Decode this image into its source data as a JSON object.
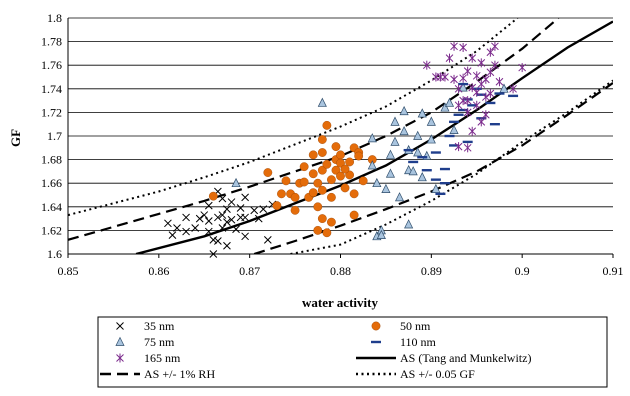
{
  "chart_data": {
    "type": "scatter",
    "title": "",
    "xlabel": "water activity",
    "ylabel": "GF",
    "xlim": [
      0.85,
      0.91
    ],
    "ylim": [
      1.6,
      1.8
    ],
    "x_ticks": [
      "0.85",
      "0.86",
      "0.87",
      "0.88",
      "0.89",
      "0.9",
      "0.91"
    ],
    "y_ticks": [
      "1.6",
      "1.62",
      "1.64",
      "1.66",
      "1.68",
      "1.7",
      "1.72",
      "1.74",
      "1.76",
      "1.78",
      "1.8"
    ],
    "grid": "horizontal",
    "legend_position": "bottom",
    "series": [
      {
        "name": "35 nm",
        "marker": "x",
        "color": "#000000",
        "points": [
          [
            0.861,
            1.626
          ],
          [
            0.8615,
            1.616
          ],
          [
            0.863,
            1.619
          ],
          [
            0.863,
            1.631
          ],
          [
            0.864,
            1.622
          ],
          [
            0.865,
            1.633
          ],
          [
            0.8655,
            1.628
          ],
          [
            0.8655,
            1.641
          ],
          [
            0.8655,
            1.619
          ],
          [
            0.866,
            1.612
          ],
          [
            0.866,
            1.6
          ],
          [
            0.8665,
            1.631
          ],
          [
            0.8665,
            1.611
          ],
          [
            0.867,
            1.647
          ],
          [
            0.867,
            1.633
          ],
          [
            0.867,
            1.622
          ],
          [
            0.8675,
            1.638
          ],
          [
            0.8675,
            1.627
          ],
          [
            0.8675,
            1.607
          ],
          [
            0.868,
            1.644
          ],
          [
            0.868,
            1.629
          ],
          [
            0.8685,
            1.621
          ],
          [
            0.869,
            1.639
          ],
          [
            0.869,
            1.631
          ],
          [
            0.8695,
            1.648
          ],
          [
            0.8695,
            1.631
          ],
          [
            0.8705,
            1.637
          ],
          [
            0.871,
            1.63
          ],
          [
            0.8715,
            1.638
          ],
          [
            0.8725,
            1.642
          ],
          [
            0.8695,
            1.615
          ],
          [
            0.872,
            1.612
          ],
          [
            0.8665,
            1.653
          ],
          [
            0.8645,
            1.63
          ],
          [
            0.862,
            1.622
          ]
        ]
      },
      {
        "name": "50 nm",
        "marker": "circle",
        "color": "#E46C0A",
        "points": [
          [
            0.866,
            1.649
          ],
          [
            0.872,
            1.669
          ],
          [
            0.873,
            1.641
          ],
          [
            0.8735,
            1.651
          ],
          [
            0.874,
            1.662
          ],
          [
            0.8745,
            1.651
          ],
          [
            0.875,
            1.637
          ],
          [
            0.875,
            1.648
          ],
          [
            0.8755,
            1.66
          ],
          [
            0.876,
            1.674
          ],
          [
            0.876,
            1.661
          ],
          [
            0.8765,
            1.648
          ],
          [
            0.877,
            1.684
          ],
          [
            0.877,
            1.668
          ],
          [
            0.877,
            1.652
          ],
          [
            0.8775,
            1.64
          ],
          [
            0.8775,
            1.66
          ],
          [
            0.878,
            1.697
          ],
          [
            0.878,
            1.686
          ],
          [
            0.878,
            1.671
          ],
          [
            0.878,
            1.654
          ],
          [
            0.878,
            1.63
          ],
          [
            0.8785,
            1.709
          ],
          [
            0.8785,
            1.676
          ],
          [
            0.879,
            1.663
          ],
          [
            0.879,
            1.648
          ],
          [
            0.8795,
            1.691
          ],
          [
            0.8795,
            1.68
          ],
          [
            0.8795,
            1.671
          ],
          [
            0.88,
            1.684
          ],
          [
            0.88,
            1.677
          ],
          [
            0.88,
            1.666
          ],
          [
            0.8805,
            1.656
          ],
          [
            0.881,
            1.678
          ],
          [
            0.881,
            1.667
          ],
          [
            0.8815,
            1.69
          ],
          [
            0.8815,
            1.651
          ],
          [
            0.8815,
            1.633
          ],
          [
            0.882,
            1.686
          ],
          [
            0.882,
            1.683
          ],
          [
            0.8825,
            1.662
          ],
          [
            0.8835,
            1.68
          ],
          [
            0.8785,
            1.618
          ],
          [
            0.8775,
            1.62
          ],
          [
            0.879,
            1.627
          ],
          [
            0.8805,
            1.672
          ]
        ]
      },
      {
        "name": "75 nm",
        "marker": "triangle",
        "color": "#A9C4DE",
        "points": [
          [
            0.8685,
            1.66
          ],
          [
            0.878,
            1.728
          ],
          [
            0.8835,
            1.698
          ],
          [
            0.8835,
            1.675
          ],
          [
            0.884,
            1.66
          ],
          [
            0.884,
            1.615
          ],
          [
            0.8845,
            1.62
          ],
          [
            0.8845,
            1.616
          ],
          [
            0.885,
            1.655
          ],
          [
            0.8855,
            1.684
          ],
          [
            0.8855,
            1.668
          ],
          [
            0.886,
            1.712
          ],
          [
            0.886,
            1.695
          ],
          [
            0.8865,
            1.648
          ],
          [
            0.887,
            1.721
          ],
          [
            0.887,
            1.704
          ],
          [
            0.8875,
            1.688
          ],
          [
            0.8875,
            1.671
          ],
          [
            0.888,
            1.67
          ],
          [
            0.8885,
            1.7
          ],
          [
            0.8885,
            1.686
          ],
          [
            0.889,
            1.719
          ],
          [
            0.889,
            1.665
          ],
          [
            0.8895,
            1.683
          ],
          [
            0.89,
            1.712
          ],
          [
            0.89,
            1.697
          ],
          [
            0.8905,
            1.655
          ],
          [
            0.8915,
            1.724
          ],
          [
            0.892,
            1.728
          ],
          [
            0.8925,
            1.705
          ],
          [
            0.8875,
            1.625
          ],
          [
            0.8935,
            1.741
          ],
          [
            0.898,
            1.74
          ]
        ]
      },
      {
        "name": "110 nm",
        "marker": "dash",
        "color": "#1F3E8C",
        "points": [
          [
            0.8875,
            1.688
          ],
          [
            0.888,
            1.678
          ],
          [
            0.889,
            1.682
          ],
          [
            0.8895,
            1.671
          ],
          [
            0.8905,
            1.663
          ],
          [
            0.8905,
            1.686
          ],
          [
            0.891,
            1.651
          ],
          [
            0.8915,
            1.672
          ],
          [
            0.8915,
            1.66
          ],
          [
            0.892,
            1.7
          ],
          [
            0.8925,
            1.692
          ],
          [
            0.8925,
            1.712
          ],
          [
            0.893,
            1.718
          ],
          [
            0.8935,
            1.722
          ],
          [
            0.894,
            1.695
          ],
          [
            0.894,
            1.731
          ],
          [
            0.8945,
            1.726
          ],
          [
            0.895,
            1.74
          ],
          [
            0.8955,
            1.715
          ],
          [
            0.8965,
            1.728
          ],
          [
            0.897,
            1.71
          ],
          [
            0.8975,
            1.736
          ],
          [
            0.899,
            1.734
          ],
          [
            0.8955,
            1.735
          ],
          [
            0.8935,
            1.744
          ]
        ]
      },
      {
        "name": "165 nm",
        "marker": "star",
        "color": "#7B2A8C",
        "points": [
          [
            0.8895,
            1.76
          ],
          [
            0.8905,
            1.75
          ],
          [
            0.891,
            1.75
          ],
          [
            0.8915,
            1.75
          ],
          [
            0.892,
            1.766
          ],
          [
            0.8925,
            1.776
          ],
          [
            0.8925,
            1.748
          ],
          [
            0.893,
            1.74
          ],
          [
            0.893,
            1.726
          ],
          [
            0.8935,
            1.749
          ],
          [
            0.8935,
            1.73
          ],
          [
            0.894,
            1.755
          ],
          [
            0.894,
            1.73
          ],
          [
            0.894,
            1.72
          ],
          [
            0.8945,
            1.766
          ],
          [
            0.8945,
            1.741
          ],
          [
            0.895,
            1.751
          ],
          [
            0.895,
            1.737
          ],
          [
            0.895,
            1.726
          ],
          [
            0.8955,
            1.762
          ],
          [
            0.8955,
            1.744
          ],
          [
            0.896,
            1.733
          ],
          [
            0.896,
            1.748
          ],
          [
            0.8965,
            1.771
          ],
          [
            0.8965,
            1.754
          ],
          [
            0.8965,
            1.736
          ],
          [
            0.897,
            1.776
          ],
          [
            0.897,
            1.76
          ],
          [
            0.8975,
            1.746
          ],
          [
            0.893,
            1.691
          ],
          [
            0.894,
            1.69
          ],
          [
            0.8945,
            1.704
          ],
          [
            0.8955,
            1.712
          ],
          [
            0.896,
            1.718
          ],
          [
            0.9,
            1.758
          ],
          [
            0.899,
            1.74
          ],
          [
            0.8935,
            1.775
          ]
        ]
      }
    ],
    "curves": [
      {
        "name": "AS (Tang and Munkelwitz)",
        "style": "solid",
        "color": "#000000",
        "points": [
          [
            0.8575,
            1.6
          ],
          [
            0.865,
            1.615
          ],
          [
            0.87,
            1.628
          ],
          [
            0.875,
            1.643
          ],
          [
            0.88,
            1.658
          ],
          [
            0.885,
            1.675
          ],
          [
            0.89,
            1.697
          ],
          [
            0.895,
            1.722
          ],
          [
            0.9,
            1.749
          ],
          [
            0.905,
            1.775
          ],
          [
            0.91,
            1.797
          ]
        ]
      },
      {
        "name": "AS +/- 1% RH",
        "style": "dashed",
        "color": "#000000",
        "points": [
          [
            0.85,
            1.612
          ],
          [
            0.855,
            1.623
          ],
          [
            0.86,
            1.634
          ],
          [
            0.865,
            1.645
          ],
          [
            0.87,
            1.657
          ],
          [
            0.875,
            1.67
          ],
          [
            0.88,
            1.683
          ],
          [
            0.885,
            1.7
          ],
          [
            0.89,
            1.72
          ],
          [
            0.895,
            1.746
          ],
          [
            0.9,
            1.774
          ],
          [
            0.904,
            1.8
          ]
        ]
      },
      {
        "name": "",
        "style": "dashed",
        "color": "#000000",
        "points": [
          [
            0.8705,
            1.6
          ],
          [
            0.875,
            1.611
          ],
          [
            0.88,
            1.624
          ],
          [
            0.885,
            1.638
          ],
          [
            0.89,
            1.653
          ],
          [
            0.895,
            1.67
          ],
          [
            0.9,
            1.692
          ],
          [
            0.905,
            1.718
          ],
          [
            0.91,
            1.745
          ]
        ]
      },
      {
        "name": "AS +/- 0.05 GF",
        "style": "dotted",
        "color": "#000000",
        "points": [
          [
            0.85,
            1.633
          ],
          [
            0.855,
            1.643
          ],
          [
            0.86,
            1.653
          ],
          [
            0.865,
            1.665
          ],
          [
            0.87,
            1.678
          ],
          [
            0.875,
            1.693
          ],
          [
            0.88,
            1.708
          ],
          [
            0.885,
            1.725
          ],
          [
            0.89,
            1.747
          ],
          [
            0.895,
            1.772
          ],
          [
            0.8995,
            1.8
          ]
        ]
      },
      {
        "name": "",
        "style": "dotted",
        "color": "#000000",
        "points": [
          [
            0.8745,
            1.6
          ],
          [
            0.88,
            1.608
          ],
          [
            0.885,
            1.625
          ],
          [
            0.89,
            1.645
          ],
          [
            0.895,
            1.668
          ],
          [
            0.9,
            1.695
          ],
          [
            0.905,
            1.72
          ],
          [
            0.91,
            1.747
          ]
        ]
      }
    ],
    "legend": [
      {
        "label": "35 nm",
        "marker": "x",
        "color": "#000000"
      },
      {
        "label": "50 nm",
        "marker": "circle",
        "color": "#E46C0A"
      },
      {
        "label": "75 nm",
        "marker": "triangle",
        "color": "#A9C4DE"
      },
      {
        "label": "110 nm",
        "marker": "dash",
        "color": "#1F3E8C"
      },
      {
        "label": "165 nm",
        "marker": "star",
        "color": "#7B2A8C"
      },
      {
        "label": "AS (Tang and Munkelwitz)",
        "marker": "solid-line",
        "color": "#000000"
      },
      {
        "label": "AS +/- 1% RH",
        "marker": "dashed-line",
        "color": "#000000"
      },
      {
        "label": "AS +/- 0.05 GF",
        "marker": "dotted-line",
        "color": "#000000"
      }
    ]
  }
}
